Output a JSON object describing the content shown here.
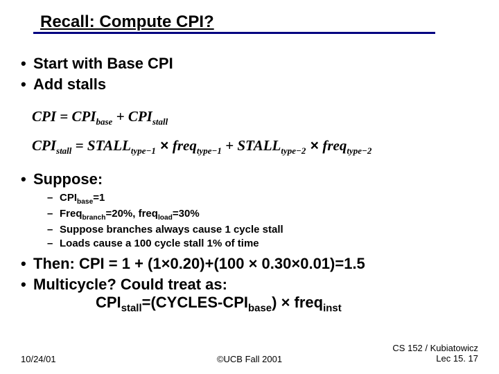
{
  "title": "Recall: Compute CPI?",
  "colors": {
    "underline": "#000080",
    "text": "#000000",
    "bg": "#ffffff"
  },
  "bullets": {
    "b1": "Start with Base CPI",
    "b2": "Add stalls",
    "b3": "Suppose:",
    "b4": "Then: CPI = 1 + (1×0.20)+(100 × 0.30×0.01)=1.5",
    "b5": "Multicycle?  Could treat as:"
  },
  "equations": {
    "eq1_lhs": "CPI",
    "eq1_eq": " = ",
    "eq1_t1": "CPI",
    "eq1_t1s": "base",
    "eq1_plus": " + ",
    "eq1_t2": "CPI",
    "eq1_t2s": "stall",
    "eq2_lhs": "CPI",
    "eq2_lhss": "stall",
    "eq2_eq": " = ",
    "eq2_t1": "STALL",
    "eq2_t1s": "type−1",
    "eq2_x1": " × ",
    "eq2_t2": "freq",
    "eq2_t2s": "type−1",
    "eq2_plus": " + ",
    "eq2_t3": "STALL",
    "eq2_t3s": "type−2",
    "eq2_x2": " × ",
    "eq2_t4": "freq",
    "eq2_t4s": "type−2"
  },
  "sub_bullets": {
    "s1a": "CPI",
    "s1b": "base",
    "s1c": "=1",
    "s2a": "Freq",
    "s2b": "branch",
    "s2c": "=20%, freq",
    "s2d": "load",
    "s2e": "=30%",
    "s3": "Suppose branches always cause 1 cycle stall",
    "s4": "Loads cause a 100 cycle stall 1% of time"
  },
  "multicycle_eq": {
    "a": "CPI",
    "b": "stall",
    "c": "=(CYCLES-CPI",
    "d": "base",
    "e": ") × freq",
    "f": "inst"
  },
  "footer": {
    "left": "10/24/01",
    "center": "©UCB Fall 2001",
    "right1": "CS 152 / Kubiatowicz",
    "right2": "Lec 15. 17"
  }
}
